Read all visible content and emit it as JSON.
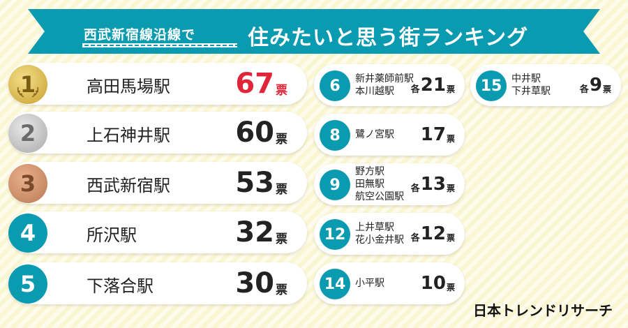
{
  "banner": {
    "subtitle": "西武新宿線沿線で",
    "title": "住みたいと思う街ランキング",
    "color": "#0b9bb0"
  },
  "ranking_big": [
    {
      "rank": "1",
      "station": "高田馬場駅",
      "votes": "67",
      "unit": "票",
      "medal": "gold"
    },
    {
      "rank": "2",
      "station": "上石神井駅",
      "votes": "60",
      "unit": "票",
      "medal": "silver"
    },
    {
      "rank": "3",
      "station": "西武新宿駅",
      "votes": "53",
      "unit": "票",
      "medal": "bronze"
    },
    {
      "rank": "4",
      "station": "所沢駅",
      "votes": "32",
      "unit": "票",
      "medal": "teal"
    },
    {
      "rank": "5",
      "station": "下落合駅",
      "votes": "30",
      "unit": "票",
      "medal": "teal"
    }
  ],
  "ranking_small": [
    {
      "rank": "6",
      "stations": [
        "新井薬師前駅",
        "本川越駅"
      ],
      "each": "各",
      "votes": "21",
      "unit": "票"
    },
    {
      "rank": "8",
      "stations": [
        "鷺ノ宮駅"
      ],
      "each": "",
      "votes": "17",
      "unit": "票"
    },
    {
      "rank": "9",
      "stations": [
        "野方駅",
        "田無駅",
        "航空公園駅"
      ],
      "each": "各",
      "votes": "13",
      "unit": "票"
    },
    {
      "rank": "12",
      "stations": [
        "上井草駅",
        "花小金井駅"
      ],
      "each": "各",
      "votes": "12",
      "unit": "票"
    },
    {
      "rank": "14",
      "stations": [
        "小平駅"
      ],
      "each": "",
      "votes": "10",
      "unit": "票"
    },
    {
      "rank": "15",
      "stations": [
        "中井駅",
        "下井草駅"
      ],
      "each": "各",
      "votes": "9",
      "unit": "票"
    }
  ],
  "logo": "日本トレンドリサーチ"
}
